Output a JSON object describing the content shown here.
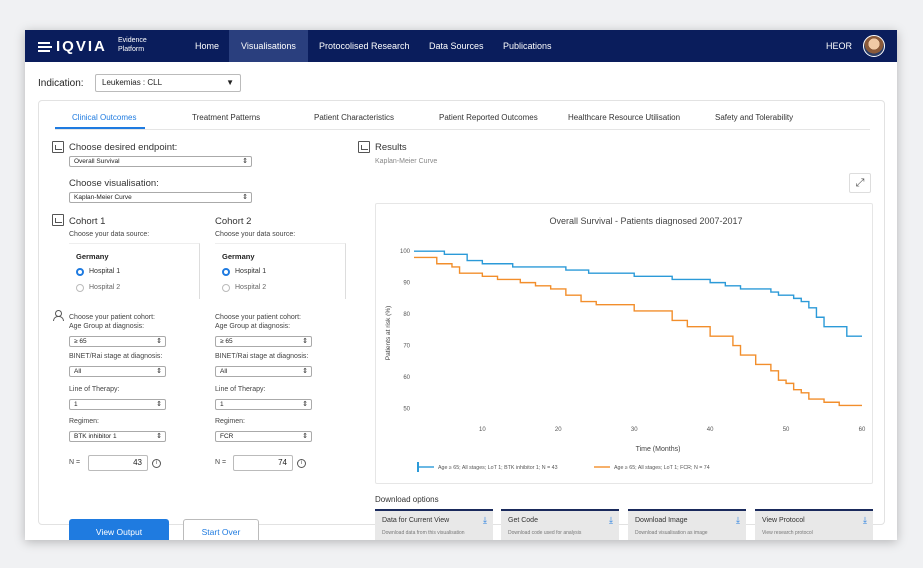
{
  "logo": {
    "word": "IQVIA",
    "sub1": "Evidence",
    "sub2": "Platform"
  },
  "nav": {
    "items": [
      "Home",
      "Visualisations",
      "Protocolised Research",
      "Data Sources",
      "Publications"
    ],
    "right": "HEOR"
  },
  "indication": {
    "label": "Indication:",
    "value": "Leukemias : CLL"
  },
  "tabs": [
    "Clinical Outcomes",
    "Treatment Patterns",
    "Patient Characteristics",
    "Patient Reported Outcomes",
    "Healthcare Resource Utilisation",
    "Safety and Tolerability"
  ],
  "endpoint": {
    "label": "Choose desired endpoint:",
    "value": "Overall Survival"
  },
  "visualisation": {
    "label": "Choose visualisation:",
    "value": "Kaplan-Meier Curve"
  },
  "cohorts": [
    {
      "title": "Cohort 1",
      "source_label": "Choose your data source:",
      "country": "Germany",
      "hospitals": [
        "Hospital 1",
        "Hospital 2"
      ],
      "selected_hospital": "Hospital 1",
      "cohort_label": "Choose your patient cohort:",
      "age_label": "Age Group at diagnosis:",
      "age_value": "≥ 65",
      "binet_label": "BINET/Rai stage at diagnosis:",
      "binet_value": "All",
      "lot_label": "Line of Therapy:",
      "lot_value": "1",
      "regimen_label": "Regimen:",
      "regimen_value": "BTK inhibitor 1",
      "n_label": "N =",
      "n_value": "43"
    },
    {
      "title": "Cohort 2",
      "source_label": "Choose your data source:",
      "country": "Germany",
      "hospitals": [
        "Hospital 1",
        "Hospital 2"
      ],
      "selected_hospital": "Hospital 1",
      "cohort_label": "Choose your patient cohort:",
      "age_label": "Age Group at diagnosis:",
      "age_value": "≥ 65",
      "binet_label": "BINET/Rai stage at diagnosis:",
      "binet_value": "All",
      "lot_label": "Line of Therapy:",
      "lot_value": "1",
      "regimen_label": "Regimen:",
      "regimen_value": "FCR",
      "n_label": "N =",
      "n_value": "74"
    }
  ],
  "buttons": {
    "view_output": "View Output",
    "start_over": "Start Over"
  },
  "results": {
    "title": "Results",
    "subtitle": "Kaplan-Meier Curve"
  },
  "download": {
    "title": "Download options",
    "cards": [
      {
        "title": "Data for Current View",
        "desc": "Download data from this visualisation"
      },
      {
        "title": "Get Code",
        "desc": "Download code used for analysis"
      },
      {
        "title": "Download Image",
        "desc": "Download visualisation as image"
      },
      {
        "title": "View Protocol",
        "desc": "View research protocol"
      }
    ]
  },
  "colors": {
    "navy": "#0a1d5c",
    "accent": "#1f7be0",
    "series1": "#2b9ad8",
    "series2": "#f28e2b"
  },
  "chart_data": {
    "type": "line",
    "title": "Overall Survival - Patients diagnosed 2007-2017",
    "xlabel": "Time (Months)",
    "ylabel": "Patients at risk (%)",
    "xlim": [
      1,
      60
    ],
    "ylim": [
      47,
      101
    ],
    "xticks": [
      10,
      20,
      30,
      40,
      50,
      60
    ],
    "yticks": [
      50,
      60,
      70,
      80,
      90,
      100
    ],
    "legend": "bottom",
    "series": [
      {
        "name": "Age ≥ 65; All stages; LoT 1; BTK inhibitor 1; N = 43",
        "color": "#2b9ad8",
        "step": true,
        "x": [
          1,
          4,
          5,
          8,
          10,
          14,
          21,
          24,
          30,
          35,
          38,
          40,
          42,
          44,
          48,
          49,
          51,
          52,
          53,
          54,
          55,
          58,
          60
        ],
        "y": [
          100,
          100,
          99,
          97,
          96,
          95,
          94,
          93,
          92,
          91,
          91,
          90,
          89,
          88,
          87,
          86,
          85,
          84,
          82,
          79,
          76,
          73,
          73
        ]
      },
      {
        "name": "Age ≥ 65; All stages; LoT 1; FCR; N = 74",
        "color": "#f28e2b",
        "step": true,
        "x": [
          1,
          3,
          4,
          6,
          7,
          10,
          12,
          15,
          17,
          19,
          21,
          23,
          25,
          30,
          35,
          37,
          40,
          43,
          44,
          46,
          48,
          49,
          50,
          51,
          52,
          53,
          55,
          57,
          60
        ],
        "y": [
          98,
          98,
          96,
          95,
          93,
          92,
          91,
          90,
          89,
          88,
          86,
          84,
          83,
          81,
          78,
          76,
          73,
          70,
          67,
          64,
          62,
          59,
          58,
          56,
          55,
          53,
          52,
          51,
          51
        ]
      }
    ]
  }
}
